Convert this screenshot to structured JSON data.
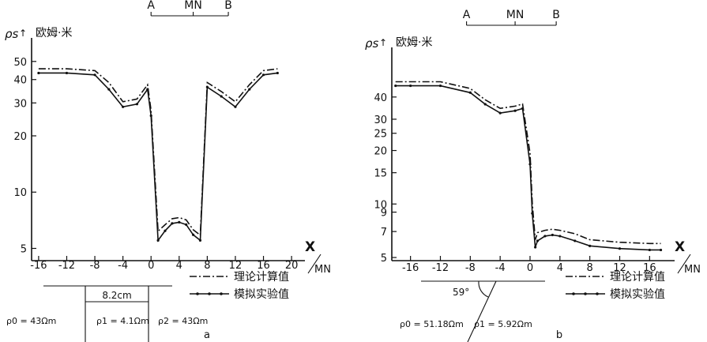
{
  "chart_data": [
    {
      "type": "line",
      "panel_label": "a",
      "ylabel_symbol": "ρs",
      "ylabel_unit": "欧姆·米",
      "xlabel_top": "X",
      "xlabel_bottom": "MN",
      "x_ticks": [
        "-16",
        "-12",
        "-8",
        "-4",
        "0",
        "4",
        "8",
        "12",
        "16",
        "20"
      ],
      "y_ticks": [
        "5",
        "10",
        "20",
        "30",
        "40",
        "50"
      ],
      "xlim": [
        -17,
        21
      ],
      "ylim": [
        4.3,
        55
      ],
      "y_scale": "log",
      "electrodes": {
        "labels": [
          "A",
          "MN",
          "B"
        ],
        "positions": [
          0,
          6,
          11
        ]
      },
      "series": [
        {
          "name": "理论计算值",
          "style": "dash-dot",
          "x": [
            -16,
            -12,
            -8,
            -6,
            -4,
            -2,
            -0.5,
            0,
            1,
            2,
            3,
            4,
            5,
            6,
            7,
            8,
            10,
            12,
            14,
            16,
            18
          ],
          "y": [
            45,
            45,
            44,
            38,
            30,
            31,
            37,
            27,
            6.1,
            6.6,
            7.1,
            7.2,
            7.0,
            6.2,
            5.8,
            38,
            34,
            30,
            37,
            44,
            45
          ]
        },
        {
          "name": "模拟实验值",
          "style": "solid-dot",
          "x": [
            -16,
            -12,
            -8,
            -6,
            -4,
            -2,
            -0.5,
            0,
            1,
            2,
            3,
            4,
            5,
            6,
            7,
            8,
            10,
            12,
            14,
            16,
            18
          ],
          "y": [
            44,
            44,
            43,
            36,
            29,
            30,
            36,
            26,
            5.6,
            6.3,
            6.9,
            7.0,
            6.8,
            6.0,
            5.6,
            37,
            33,
            29,
            36,
            43,
            44
          ]
        }
      ],
      "legend": [
        "理论计算值",
        "模拟实验值"
      ],
      "model": {
        "width_label": "8.2cm",
        "rho_labels": [
          "ρ0 = 43Ωm",
          "ρ1 = 4.1Ωm",
          "ρ2 = 43Ωm"
        ]
      }
    },
    {
      "type": "line",
      "panel_label": "b",
      "ylabel_symbol": "ρs",
      "ylabel_unit": "欧姆·米",
      "xlabel_top": "X",
      "xlabel_bottom": "MN",
      "x_ticks": [
        "-16",
        "-12",
        "-8",
        "-4",
        "0",
        "4",
        "8",
        "12",
        "16"
      ],
      "y_ticks": [
        "5",
        "7",
        "9",
        "10",
        "15",
        "20",
        "25",
        "30",
        "40"
      ],
      "xlim": [
        -18.5,
        18.5
      ],
      "ylim": [
        4.8,
        62
      ],
      "y_scale": "log",
      "electrodes": {
        "labels": [
          "A",
          "MN",
          "B"
        ],
        "positions": [
          -8.5,
          -2,
          3.5
        ]
      },
      "series": [
        {
          "name": "理论计算值",
          "style": "dash-dot",
          "x": [
            -18,
            -16,
            -12,
            -8,
            -6,
            -4,
            -2,
            -1,
            0,
            0.3,
            0.7,
            1,
            2,
            3,
            4,
            6,
            8,
            12,
            16,
            17.5
          ],
          "y": [
            48,
            48,
            48,
            44,
            38,
            34,
            35,
            36,
            19,
            10,
            6.2,
            6.8,
            7.0,
            7.1,
            7.0,
            6.7,
            6.2,
            6.0,
            5.9,
            5.9
          ]
        },
        {
          "name": "模拟实验值",
          "style": "solid-dot",
          "x": [
            -18,
            -16,
            -12,
            -8,
            -6,
            -4,
            -2,
            -1,
            0,
            0.3,
            0.7,
            1,
            2,
            3,
            4,
            6,
            8,
            12,
            16,
            17.5
          ],
          "y": [
            47,
            47,
            47,
            43,
            37,
            33,
            34,
            35,
            17,
            9,
            5.8,
            6.3,
            6.7,
            6.8,
            6.7,
            6.3,
            5.9,
            5.7,
            5.6,
            5.6
          ]
        }
      ],
      "legend": [
        "理论计算值",
        "模拟实验值"
      ],
      "model": {
        "angle_label": "59°",
        "rho_labels": [
          "ρ0 = 51.18Ωm",
          "ρ1 = 5.92Ωm"
        ]
      }
    }
  ]
}
